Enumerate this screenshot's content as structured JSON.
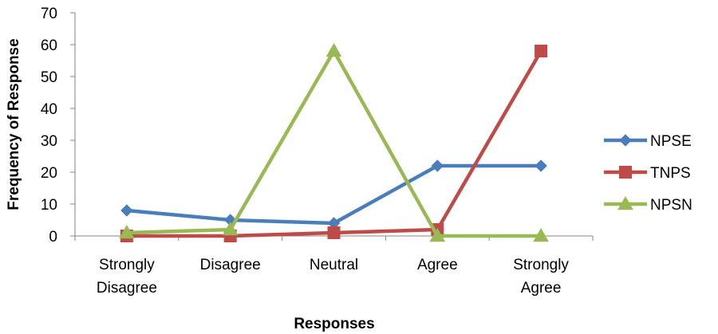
{
  "chart_data": {
    "type": "line",
    "title": "",
    "xlabel": "Responses",
    "ylabel": "Frequency of Response",
    "categories": [
      [
        "Strongly",
        "Disagree"
      ],
      [
        "Disagree"
      ],
      [
        "Neutral"
      ],
      [
        "Agree"
      ],
      [
        "Strongly",
        "Agree"
      ]
    ],
    "ylim": [
      0,
      70
    ],
    "yticks": [
      0,
      10,
      20,
      30,
      40,
      50,
      60,
      70
    ],
    "grid": false,
    "legend_position": "right",
    "series": [
      {
        "name": "NPSE",
        "values": [
          8,
          5,
          4,
          22,
          22
        ],
        "color": "#4A7EBB",
        "marker": "diamond"
      },
      {
        "name": "TNPS",
        "values": [
          0,
          0,
          1,
          2,
          58
        ],
        "color": "#BE4B48",
        "marker": "square"
      },
      {
        "name": "NPSN",
        "values": [
          1,
          2,
          58,
          0,
          0
        ],
        "color": "#98B954",
        "marker": "triangle"
      }
    ]
  }
}
